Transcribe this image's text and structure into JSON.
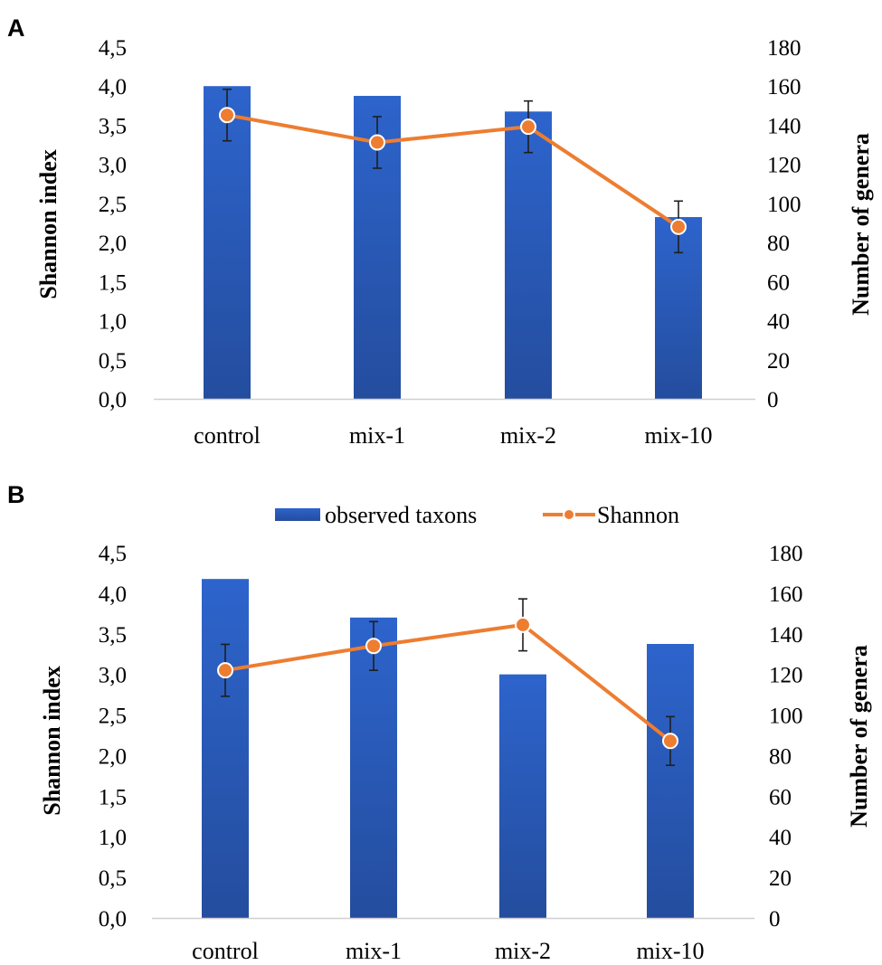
{
  "colors": {
    "bar_top": "#2d64cc",
    "bar_bottom": "#244d9e",
    "line": "#ed7d31",
    "marker_fill": "#ed7d31",
    "marker_stroke": "#ffffff",
    "error": "#1f1f1f",
    "axis": "#d0d0d0"
  },
  "legend": {
    "bars": "observed taxons",
    "line": "Shannon"
  },
  "chart_data": [
    {
      "panel": "A",
      "type": "bar+line",
      "categories": [
        "control",
        "mix-1",
        "mix-2",
        "mix-10"
      ],
      "ylabel": "Shannon index",
      "y2label": "Number of genera",
      "ylim": [
        0,
        4.5
      ],
      "y2lim": [
        0,
        180
      ],
      "yticks": [
        "0,0",
        "0,5",
        "1,0",
        "1,5",
        "2,0",
        "2,5",
        "3,0",
        "3,5",
        "4,0",
        "4,5"
      ],
      "y2ticks": [
        "0",
        "20",
        "40",
        "60",
        "80",
        "100",
        "120",
        "140",
        "160",
        "180"
      ],
      "series": [
        {
          "name": "observed taxons",
          "axis": "right",
          "kind": "bar",
          "values": [
            160,
            155,
            147,
            93
          ]
        },
        {
          "name": "Shannon",
          "axis": "left",
          "kind": "line",
          "values": [
            3.63,
            3.28,
            3.48,
            2.2
          ],
          "err": [
            0.33,
            0.33,
            0.33,
            0.33
          ]
        }
      ]
    },
    {
      "panel": "B",
      "type": "bar+line",
      "categories": [
        "control",
        "mix-1",
        "mix-2",
        "mix-10"
      ],
      "ylabel": "Shannon index",
      "y2label": "Number of genera",
      "ylim": [
        0,
        4.5
      ],
      "y2lim": [
        0,
        180
      ],
      "yticks": [
        "0,0",
        "0,5",
        "1,0",
        "1,5",
        "2,0",
        "2,5",
        "3,0",
        "3,5",
        "4,0",
        "4,5"
      ],
      "y2ticks": [
        "0",
        "20",
        "40",
        "60",
        "80",
        "100",
        "120",
        "140",
        "160",
        "180"
      ],
      "series": [
        {
          "name": "observed taxons",
          "axis": "right",
          "kind": "bar",
          "values": [
            167,
            148,
            120,
            135
          ]
        },
        {
          "name": "Shannon",
          "axis": "left",
          "kind": "line",
          "values": [
            3.05,
            3.35,
            3.61,
            2.18
          ],
          "err": [
            0.32,
            0.3,
            0.32,
            0.3
          ]
        }
      ]
    }
  ]
}
